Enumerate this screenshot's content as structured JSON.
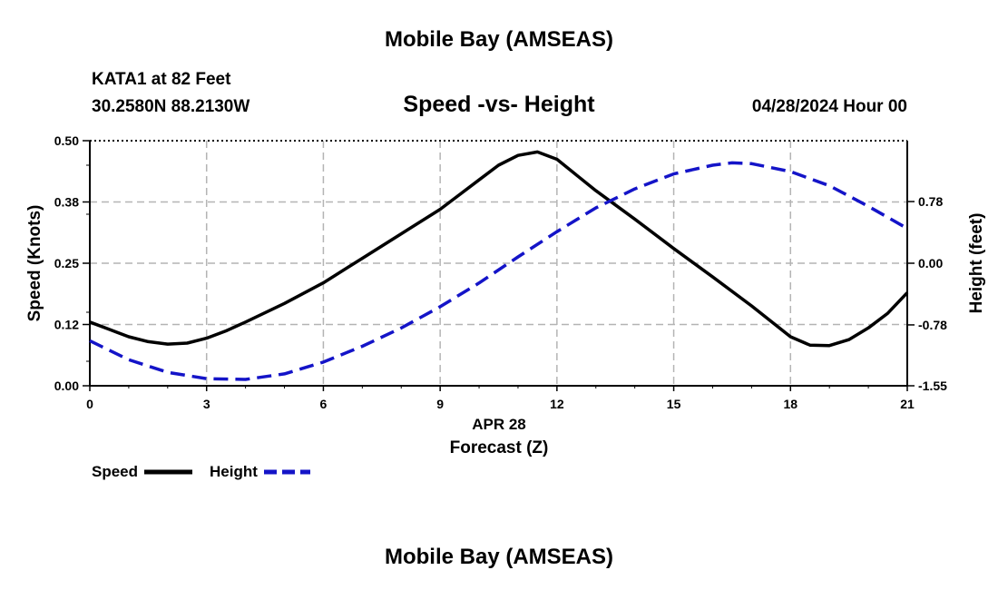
{
  "header": {
    "title_top": "Mobile Bay (AMSEAS)",
    "station": "KATA1 at 82 Feet",
    "coords": "30.2580N  88.2130W",
    "plot_title": "Speed -vs- Height",
    "date_label": "04/28/2024 Hour 00"
  },
  "footer": {
    "title_bottom": "Mobile Bay (AMSEAS)"
  },
  "legend": {
    "speed": "Speed",
    "height": "Height"
  },
  "colors": {
    "speed": "#000000",
    "height": "#1414c8",
    "grid": "#b4b4b4"
  },
  "chart_data": {
    "type": "line",
    "title": "Speed -vs- Height",
    "xlabel": "Forecast (Z)",
    "xdate": "APR 28",
    "ylabel": "Speed (Knots)",
    "y2label": "Height (feet)",
    "xlim": [
      0,
      21
    ],
    "ylim": [
      0,
      0.5
    ],
    "y2lim": [
      -1.55,
      1.55
    ],
    "x_ticks": [
      "0",
      "3",
      "6",
      "9",
      "12",
      "15",
      "18",
      "21"
    ],
    "y_ticks": [
      "0.00",
      "0.12",
      "0.25",
      "0.38",
      "0.50"
    ],
    "y2_ticks": [
      "-1.55",
      "-0.78",
      "0.00",
      "0.78"
    ],
    "y2_tick_values": [
      -1.55,
      -0.78,
      0.0,
      0.78
    ],
    "series": [
      {
        "name": "Speed",
        "axis": "left",
        "x": [
          0,
          0.5,
          1,
          1.5,
          2,
          2.5,
          3,
          3.5,
          4,
          5,
          6,
          7,
          8,
          9,
          9.5,
          10,
          10.5,
          11,
          11.5,
          12,
          12.5,
          13,
          14,
          15,
          16,
          17,
          18,
          18.5,
          19,
          19.5,
          20,
          20.5,
          21
        ],
        "values": [
          0.13,
          0.115,
          0.1,
          0.09,
          0.085,
          0.087,
          0.097,
          0.112,
          0.13,
          0.168,
          0.21,
          0.26,
          0.31,
          0.36,
          0.39,
          0.42,
          0.45,
          0.47,
          0.477,
          0.462,
          0.43,
          0.398,
          0.34,
          0.28,
          0.222,
          0.163,
          0.1,
          0.083,
          0.082,
          0.094,
          0.118,
          0.148,
          0.19
        ]
      },
      {
        "name": "Height",
        "axis": "right",
        "x": [
          0,
          1,
          2,
          3,
          4,
          5,
          6,
          7,
          8,
          9,
          10,
          11,
          12,
          13,
          14,
          15,
          16,
          16.5,
          17,
          18,
          19,
          20,
          21
        ],
        "values": [
          -0.98,
          -1.22,
          -1.38,
          -1.46,
          -1.47,
          -1.4,
          -1.25,
          -1.05,
          -0.82,
          -0.55,
          -0.25,
          0.08,
          0.4,
          0.7,
          0.94,
          1.13,
          1.24,
          1.27,
          1.26,
          1.16,
          0.98,
          0.72,
          0.44
        ]
      }
    ]
  }
}
